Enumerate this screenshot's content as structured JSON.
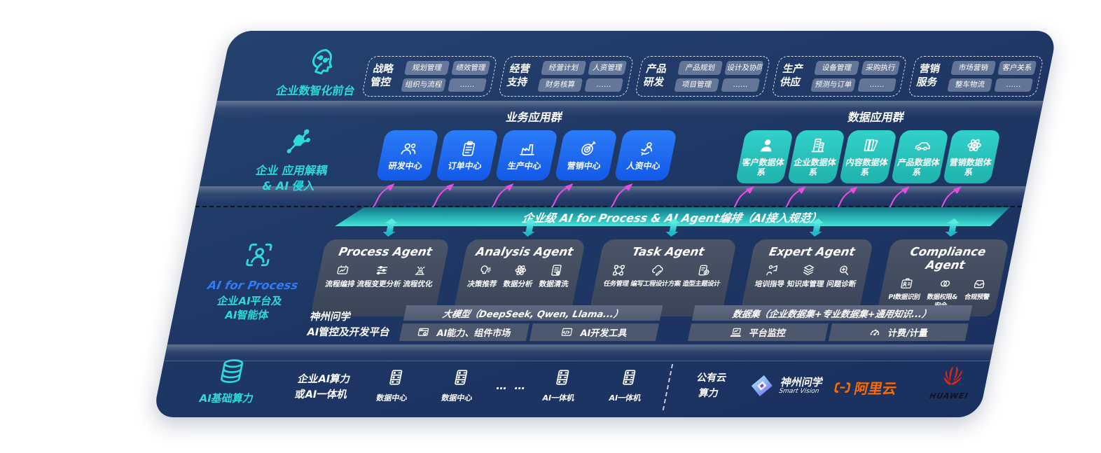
{
  "colors": {
    "panel_navy": "#1f3765",
    "accent_teal": "#2fd9d9",
    "tile_blue": "#1e6ef5",
    "tile_teal": "#29c8c0",
    "bar_teal": "#2fc4c0",
    "pink_arrow": "#e64fe0",
    "aliyun_orange": "#ff6a00",
    "huawei_red": "#e2231a"
  },
  "layer_front": {
    "label": "企业数智化前台",
    "groups": [
      {
        "name": "战略管控",
        "chips": [
          "规划管理",
          "绩效管理",
          "组织与流程",
          "……"
        ]
      },
      {
        "name": "经营支持",
        "chips": [
          "经营计划",
          "人资管理",
          "财务核算",
          "……"
        ]
      },
      {
        "name": "产品研发",
        "chips": [
          "产品规划",
          "设计及协同",
          "项目管理",
          "……"
        ]
      },
      {
        "name": "生产供应",
        "chips": [
          "设备管理",
          "采购执行",
          "预测与订单",
          "……"
        ]
      },
      {
        "name": "营销服务",
        "chips": [
          "市场营销",
          "客户关系",
          "整车物流",
          "……"
        ]
      }
    ]
  },
  "layer_apps": {
    "label_line1": "企业 应用解耦",
    "label_line2": "& AI 侵入",
    "business": {
      "title": "业务应用群",
      "tiles": [
        {
          "label": "研发中心",
          "icon": "team-icon"
        },
        {
          "label": "订单中心",
          "icon": "order-clipboard-icon"
        },
        {
          "label": "生产中心",
          "icon": "factory-icon"
        },
        {
          "label": "营销中心",
          "icon": "marketing-target-icon"
        },
        {
          "label": "人资中心",
          "icon": "hr-people-icon"
        }
      ]
    },
    "data": {
      "title": "数据应用群",
      "tiles": [
        {
          "label": "客户数据体系",
          "icon": "customer-icon"
        },
        {
          "label": "企业数据体系",
          "icon": "enterprise-building-icon"
        },
        {
          "label": "内容数据体系",
          "icon": "content-icon"
        },
        {
          "label": "产品数据体系",
          "icon": "product-car-icon"
        },
        {
          "label": "营销数据体系",
          "icon": "marketing-atom-icon"
        }
      ]
    }
  },
  "layer_ai": {
    "label_en": "AI for Process",
    "label_cn_line1": "企业AI平台及",
    "label_cn_line2": "AI智能体",
    "bus_bar": "企业级 AI for Process & AI Agent编排（AI接入规范）",
    "agents": [
      {
        "title": "Process Agent",
        "items": [
          {
            "label": "流程编排",
            "icon": "flow-orchestration-icon"
          },
          {
            "label": "流程变更分析",
            "icon": "change-analysis-icon"
          },
          {
            "label": "流程优化",
            "icon": "optimization-icon"
          }
        ]
      },
      {
        "title": "Analysis Agent",
        "items": [
          {
            "label": "决策推荐",
            "icon": "decision-icon"
          },
          {
            "label": "数据分析",
            "icon": "data-analysis-icon"
          },
          {
            "label": "数据清洗",
            "icon": "data-clean-icon"
          }
        ]
      },
      {
        "title": "Task Agent",
        "items": [
          {
            "label": "任务管理",
            "icon": "task-manage-icon"
          },
          {
            "label": "编写工程设计方案",
            "icon": "cloud-edit-icon"
          },
          {
            "label": "造型主题设计",
            "icon": "design-theme-icon"
          }
        ]
      },
      {
        "title": "Expert Agent",
        "items": [
          {
            "label": "培训指导",
            "icon": "training-icon"
          },
          {
            "label": "知识库管理",
            "icon": "knowledge-base-icon"
          },
          {
            "label": "问题诊断",
            "icon": "diagnosis-icon"
          }
        ]
      },
      {
        "title": "Compliance Agent",
        "items": [
          {
            "label": "PI数据识别",
            "icon": "pi-identify-icon"
          },
          {
            "label": "数据权限&安全",
            "icon": "data-permission-icon"
          },
          {
            "label": "合规预警",
            "icon": "compliance-alert-icon"
          }
        ]
      }
    ],
    "platform": {
      "label_line1": "神州问学",
      "label_line2": "AI管控及开发平台",
      "model_bar": "大模型（DeepSeek, Qwen, Llama...）",
      "model_tools": [
        {
          "label": "AI能力、组件市场",
          "icon": "capability-market-icon"
        },
        {
          "label": "AI开发工具",
          "icon": "dev-tools-icon"
        }
      ],
      "dataset_bar": "数据集（企业数据集+专业数据集+通用知识...）",
      "dataset_tools": [
        {
          "label": "平台监控",
          "icon": "platform-monitor-icon"
        },
        {
          "label": "计费/计量",
          "icon": "metering-gauge-icon"
        }
      ]
    }
  },
  "layer_infra": {
    "label": "AI基础算力",
    "compute_line1": "企业AI算力",
    "compute_line2": "或AI一体机",
    "nodes": [
      {
        "label": "数据中心",
        "icon": "server-icon"
      },
      {
        "label": "数据中心",
        "icon": "server-icon"
      },
      {
        "label": "… …",
        "icon": "dots"
      },
      {
        "label": "AI一体机",
        "icon": "server-icon"
      },
      {
        "label": "AI一体机",
        "icon": "server-icon"
      }
    ],
    "public_cloud_line1": "公有云",
    "public_cloud_line2": "算力",
    "partners": [
      {
        "name": "神州问学",
        "sub": "Smart Vision",
        "icon": "smart-vision-logo"
      },
      {
        "name": "阿里云",
        "icon": "aliyun-logo"
      },
      {
        "name": "HUAWEI",
        "icon": "huawei-logo"
      }
    ]
  }
}
